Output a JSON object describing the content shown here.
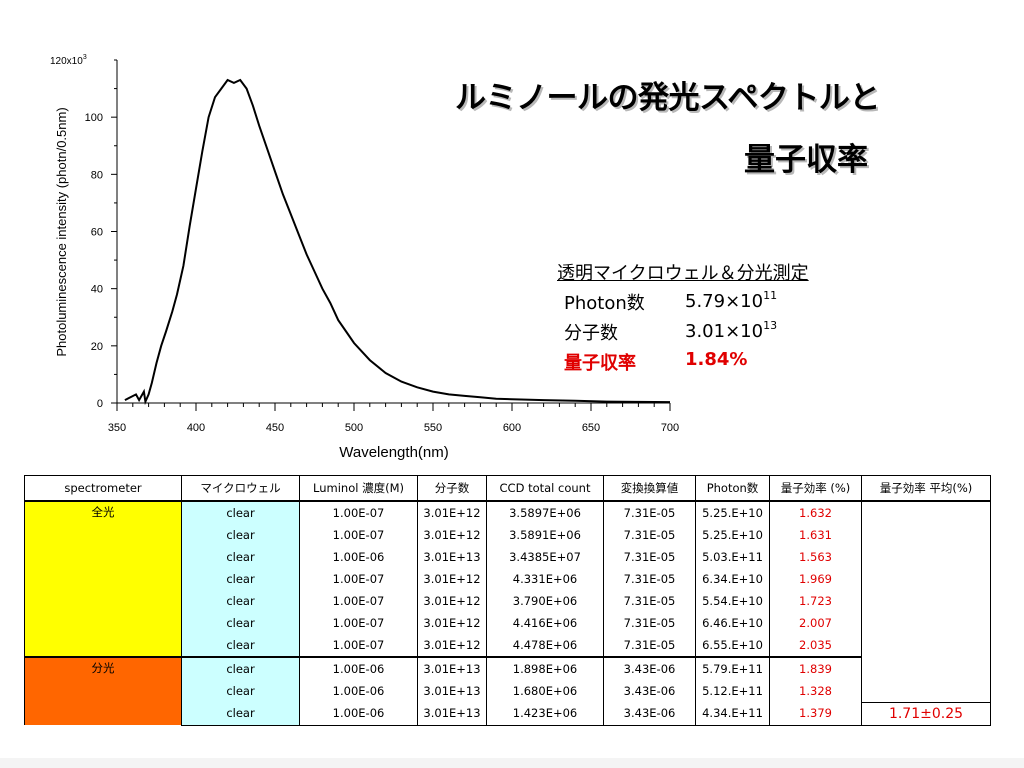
{
  "title": {
    "line1": "ルミノールの発光スペクトルと",
    "line2": "量子収率"
  },
  "info": {
    "heading": "透明マイクロウェル＆分光測定",
    "photon_label": "Photon数",
    "photon_mant": "5.79×10",
    "photon_exp": "11",
    "molecule_label": "分子数",
    "molecule_mant": "3.01×10",
    "molecule_exp": "13",
    "qy_label": "量子収率",
    "qy_value": "1.84%"
  },
  "chart_data": {
    "type": "line",
    "xlabel": "Wavelength(nm)",
    "ylabel": "Photoluminescence intensity (photn/0.5nm)",
    "y_multiplier_label": "120x10",
    "y_multiplier_exp": "3",
    "xlim": [
      350,
      700
    ],
    "ylim": [
      0,
      120
    ],
    "x_ticks": [
      350,
      400,
      450,
      500,
      550,
      600,
      650,
      700
    ],
    "y_ticks": [
      0,
      20,
      40,
      60,
      80,
      100
    ],
    "series": [
      {
        "x": [
          355,
          362,
          364,
          367,
          368,
          370,
          372,
          375,
          378,
          381,
          385,
          388,
          392,
          396,
          400,
          404,
          408,
          412,
          416,
          420,
          424,
          428,
          432,
          436,
          440,
          445,
          450,
          455,
          460,
          465,
          470,
          475,
          480,
          485,
          490,
          495,
          500,
          510,
          520,
          530,
          540,
          550,
          560,
          570,
          580,
          590,
          600,
          620,
          640,
          660,
          680,
          700
        ],
        "y": [
          1,
          3,
          1,
          4,
          0.5,
          3,
          7,
          14,
          20,
          25,
          32,
          38,
          48,
          62,
          75,
          88,
          100,
          107,
          110,
          113,
          112,
          113,
          110,
          104,
          97,
          89,
          81,
          73,
          66,
          59,
          52,
          46,
          40,
          35,
          29,
          25,
          21,
          15,
          10.5,
          7.5,
          5.5,
          4,
          3,
          2.5,
          2,
          1.5,
          1.3,
          1,
          0.8,
          0.5,
          0.4,
          0.3
        ]
      }
    ]
  },
  "table": {
    "headers": [
      "spectrometer",
      "マイクロウェル",
      "Luminol 濃度(M)",
      "分子数",
      "CCD total count",
      "変換換算値",
      "Photon数",
      "量子効率 (%)",
      "量子効率 平均(%)"
    ],
    "groups": [
      {
        "name": "全光",
        "color": "#ffff00",
        "rows": [
          [
            "clear",
            "1.00E-07",
            "3.01E+12",
            "3.5897E+06",
            "7.31E-05",
            "5.25.E+10",
            "1.632"
          ],
          [
            "clear",
            "1.00E-07",
            "3.01E+12",
            "3.5891E+06",
            "7.31E-05",
            "5.25.E+10",
            "1.631"
          ],
          [
            "clear",
            "1.00E-06",
            "3.01E+13",
            "3.4385E+07",
            "7.31E-05",
            "5.03.E+11",
            "1.563"
          ],
          [
            "clear",
            "1.00E-07",
            "3.01E+12",
            "4.331E+06",
            "7.31E-05",
            "6.34.E+10",
            "1.969"
          ],
          [
            "clear",
            "1.00E-07",
            "3.01E+12",
            "3.790E+06",
            "7.31E-05",
            "5.54.E+10",
            "1.723"
          ],
          [
            "clear",
            "1.00E-07",
            "3.01E+12",
            "4.416E+06",
            "7.31E-05",
            "6.46.E+10",
            "2.007"
          ],
          [
            "clear",
            "1.00E-07",
            "3.01E+12",
            "4.478E+06",
            "7.31E-05",
            "6.55.E+10",
            "2.035"
          ]
        ]
      },
      {
        "name": "分光",
        "color": "#ff6600",
        "rows": [
          [
            "clear",
            "1.00E-06",
            "3.01E+13",
            "1.898E+06",
            "3.43E-06",
            "5.79.E+11",
            "1.839"
          ],
          [
            "clear",
            "1.00E-06",
            "3.01E+13",
            "1.680E+06",
            "3.43E-06",
            "5.12.E+11",
            "1.328"
          ],
          [
            "clear",
            "1.00E-06",
            "3.01E+13",
            "1.423E+06",
            "3.43E-06",
            "4.34.E+11",
            "1.379"
          ]
        ]
      }
    ],
    "average": "1.71±0.25",
    "colors": {
      "microwell": "#ccffff",
      "red": "#e00000"
    }
  }
}
